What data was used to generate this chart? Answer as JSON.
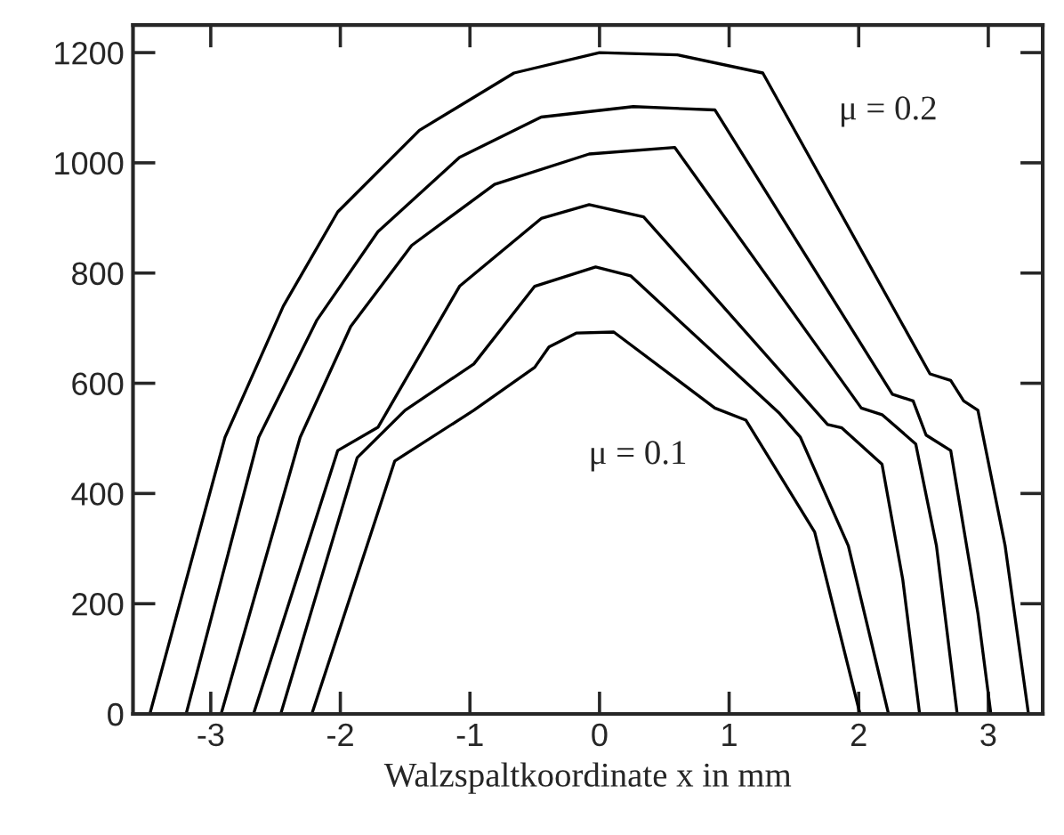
{
  "chart_data": {
    "type": "line",
    "xlabel": "Walzspaltkoordinate x in mm",
    "xlim": [
      -3.6,
      3.42
    ],
    "ylim": [
      0,
      1250
    ],
    "xticks": [
      {
        "value": -3,
        "label": "-3"
      },
      {
        "value": -2,
        "label": "-2"
      },
      {
        "value": -1,
        "label": "-1"
      },
      0,
      1,
      2,
      3
    ],
    "yticks": [
      0,
      200,
      400,
      600,
      800,
      1000,
      1200
    ],
    "grid": false,
    "legend": false,
    "marker": "none",
    "line_style": "solid",
    "series": [
      {
        "color": "#000000",
        "x": [
          -3.47,
          -2.89,
          -2.44,
          -2.02,
          -1.39,
          -0.66,
          0,
          0.6,
          1.26,
          2.55,
          2.71,
          2.81,
          2.92,
          3.13,
          3.31
        ],
        "values": [
          0,
          502,
          740,
          911,
          1059,
          1163,
          1200,
          1196,
          1163,
          617,
          605,
          568,
          551,
          305,
          0
        ]
      },
      {
        "color": "#000000",
        "x": [
          -3.19,
          -2.63,
          -2.18,
          -1.71,
          -1.08,
          -0.45,
          0.26,
          0.89,
          2.26,
          2.42,
          2.52,
          2.71,
          2.92,
          3.02
        ],
        "values": [
          0,
          502,
          715,
          875,
          1010,
          1083,
          1102,
          1096,
          580,
          568,
          506,
          478,
          182,
          0
        ]
      },
      {
        "color": "#000000",
        "x": [
          -2.92,
          -2.31,
          -1.92,
          -1.45,
          -0.81,
          -0.08,
          0.58,
          2.02,
          2.18,
          2.44,
          2.6,
          2.76
        ],
        "values": [
          0,
          502,
          703,
          850,
          961,
          1016,
          1028,
          555,
          543,
          490,
          305,
          0
        ]
      },
      {
        "color": "#000000",
        "x": [
          -2.67,
          -2.02,
          -1.71,
          -1.08,
          -0.45,
          -0.08,
          0.34,
          1.76,
          1.87,
          2.18,
          2.34,
          2.47
        ],
        "values": [
          0,
          478,
          520,
          776,
          899,
          924,
          902,
          525,
          519,
          453,
          244,
          0
        ]
      },
      {
        "color": "#000000",
        "x": [
          -2.46,
          -1.87,
          -1.5,
          -0.97,
          -0.5,
          -0.03,
          0.24,
          1.39,
          1.55,
          1.92,
          2.23
        ],
        "values": [
          0,
          465,
          551,
          635,
          776,
          811,
          795,
          545,
          502,
          305,
          0
        ]
      },
      {
        "color": "#000000",
        "x": [
          -2.22,
          -1.58,
          -0.97,
          -0.5,
          -0.39,
          -0.18,
          0.11,
          0.89,
          1.13,
          1.66,
          2.01
        ],
        "values": [
          0,
          459,
          551,
          629,
          666,
          691,
          693,
          555,
          533,
          330,
          0
        ]
      }
    ],
    "annotations": [
      "μ = 0.2",
      "μ = 0.1"
    ]
  }
}
